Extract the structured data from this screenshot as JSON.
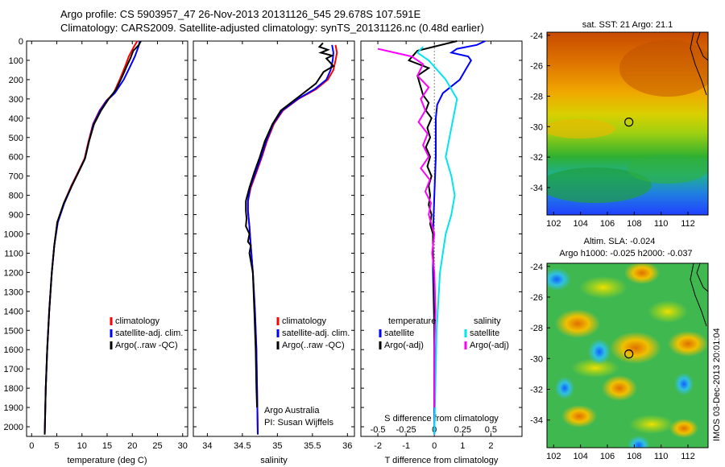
{
  "title_line1": "Argo profile: CS 5903957_47 26-Nov-2013 20131126_545 29.678S 107.591E",
  "title_line2": "Climatology: CARS2009. Satellite-adjusted climatology: synTS_20131126.nc (0.48d earlier)",
  "watermark": "IMOS 03-Dec-2013 20:01:04",
  "colors": {
    "climatology": "#ff0000",
    "satellite": "#0000ff",
    "argo": "#000000",
    "sal_satellite": "#00e5ee",
    "sal_argo": "#ff00ff"
  },
  "depth_axis": {
    "ylim": [
      2050,
      0
    ],
    "ticks": [
      0,
      100,
      200,
      300,
      400,
      500,
      600,
      700,
      800,
      900,
      1000,
      1100,
      1200,
      1300,
      1400,
      1500,
      1600,
      1700,
      1800,
      1900,
      2000
    ]
  },
  "chart_data": [
    {
      "type": "line",
      "xlabel": "temperature (deg C)",
      "ylabel": "",
      "xlim": [
        -1,
        31
      ],
      "xticks": [
        0,
        5,
        10,
        15,
        20,
        25,
        30
      ],
      "legend": [
        "climatology",
        "satellite-adj. clim.",
        "Argo(..raw -QC)"
      ],
      "legend_position": "lower-right",
      "series": [
        {
          "name": "climatology",
          "points": [
            [
              21,
              0
            ],
            [
              20.3,
              30
            ],
            [
              19.3,
              80
            ],
            [
              18.6,
              130
            ],
            [
              17.5,
              200
            ],
            [
              16.3,
              270
            ],
            [
              14.8,
              310
            ],
            [
              13.5,
              360
            ],
            [
              12.2,
              430
            ],
            [
              11.3,
              520
            ],
            [
              10.5,
              610
            ],
            [
              9.2,
              680
            ],
            [
              7.9,
              750
            ],
            [
              6.4,
              840
            ],
            [
              5.1,
              940
            ],
            [
              4.5,
              1060
            ],
            [
              4,
              1200
            ],
            [
              3.5,
              1400
            ],
            [
              3.1,
              1600
            ],
            [
              2.8,
              1800
            ],
            [
              2.6,
              2040
            ]
          ]
        },
        {
          "name": "satellite-adj. clim.",
          "points": [
            [
              21.5,
              0
            ],
            [
              21.2,
              30
            ],
            [
              20.5,
              80
            ],
            [
              19.6,
              130
            ],
            [
              18.3,
              200
            ],
            [
              16.5,
              270
            ],
            [
              14.9,
              310
            ],
            [
              13.6,
              360
            ],
            [
              12.3,
              430
            ],
            [
              11.4,
              520
            ],
            [
              10.6,
              610
            ],
            [
              9.3,
              680
            ],
            [
              8,
              750
            ],
            [
              6.5,
              840
            ],
            [
              5.2,
              940
            ],
            [
              4.5,
              1060
            ],
            [
              4,
              1200
            ],
            [
              3.5,
              1400
            ],
            [
              3.1,
              1600
            ],
            [
              2.8,
              1800
            ],
            [
              2.6,
              2040
            ]
          ]
        },
        {
          "name": "Argo(..raw -QC)",
          "points": [
            [
              21.7,
              0
            ],
            [
              21.3,
              20
            ],
            [
              20.2,
              50
            ],
            [
              19.6,
              90
            ],
            [
              18.9,
              130
            ],
            [
              17.9,
              190
            ],
            [
              16.8,
              250
            ],
            [
              15.3,
              300
            ],
            [
              13.8,
              360
            ],
            [
              12.4,
              430
            ],
            [
              11.4,
              520
            ],
            [
              10.6,
              610
            ],
            [
              9.3,
              680
            ],
            [
              8,
              750
            ],
            [
              6.4,
              840
            ],
            [
              5.1,
              940
            ],
            [
              4.5,
              1060
            ],
            [
              4,
              1200
            ],
            [
              3.5,
              1400
            ],
            [
              3.1,
              1600
            ],
            [
              2.8,
              1800
            ],
            [
              2.6,
              2040
            ]
          ]
        }
      ]
    },
    {
      "type": "line",
      "xlabel": "salinity",
      "ylabel": "",
      "xlim": [
        33.8,
        36.1
      ],
      "xticks": [
        34,
        34.5,
        35,
        35.5,
        36
      ],
      "xtick_labels": [
        "34",
        "34.5",
        "35",
        "35.5",
        "36"
      ],
      "legend": [
        "climatology",
        "satellite-adj. clim.",
        "Argo(..raw -QC)"
      ],
      "legend_position": "lower-right",
      "annotation": [
        "Argo Australia",
        "PI: Susan Wijffels"
      ],
      "series": [
        {
          "name": "climatology",
          "points": [
            [
              35.83,
              20
            ],
            [
              35.85,
              60
            ],
            [
              35.83,
              100
            ],
            [
              35.8,
              150
            ],
            [
              35.72,
              200
            ],
            [
              35.55,
              250
            ],
            [
              35.3,
              300
            ],
            [
              35.08,
              360
            ],
            [
              34.95,
              430
            ],
            [
              34.85,
              520
            ],
            [
              34.78,
              600
            ],
            [
              34.7,
              680
            ],
            [
              34.62,
              760
            ],
            [
              34.58,
              830
            ],
            [
              34.58,
              880
            ],
            [
              34.6,
              960
            ],
            [
              34.62,
              1060
            ],
            [
              34.65,
              1200
            ],
            [
              34.68,
              1400
            ],
            [
              34.7,
              1600
            ],
            [
              34.71,
              1800
            ],
            [
              34.72,
              2040
            ]
          ]
        },
        {
          "name": "satellite-adj. clim.",
          "points": [
            [
              35.78,
              20
            ],
            [
              35.8,
              60
            ],
            [
              35.79,
              100
            ],
            [
              35.76,
              150
            ],
            [
              35.7,
              200
            ],
            [
              35.53,
              250
            ],
            [
              35.29,
              300
            ],
            [
              35.07,
              360
            ],
            [
              34.94,
              430
            ],
            [
              34.84,
              520
            ],
            [
              34.77,
              600
            ],
            [
              34.69,
              680
            ],
            [
              34.61,
              760
            ],
            [
              34.58,
              830
            ],
            [
              34.58,
              880
            ],
            [
              34.6,
              960
            ],
            [
              34.62,
              1060
            ],
            [
              34.65,
              1200
            ],
            [
              34.68,
              1400
            ],
            [
              34.7,
              1600
            ],
            [
              34.71,
              1800
            ],
            [
              34.72,
              2040
            ]
          ]
        },
        {
          "name": "Argo(..raw -QC)",
          "points": [
            [
              35.65,
              10
            ],
            [
              35.6,
              30
            ],
            [
              35.72,
              45
            ],
            [
              35.62,
              60
            ],
            [
              35.78,
              75
            ],
            [
              35.7,
              90
            ],
            [
              35.75,
              110
            ],
            [
              35.8,
              130
            ],
            [
              35.66,
              160
            ],
            [
              35.55,
              220
            ],
            [
              35.3,
              290
            ],
            [
              35.05,
              360
            ],
            [
              34.93,
              430
            ],
            [
              34.82,
              520
            ],
            [
              34.75,
              600
            ],
            [
              34.67,
              680
            ],
            [
              34.6,
              760
            ],
            [
              34.55,
              830
            ],
            [
              34.55,
              880
            ],
            [
              34.56,
              920
            ],
            [
              34.55,
              960
            ],
            [
              34.6,
              1000
            ],
            [
              34.58,
              1040
            ],
            [
              34.62,
              1060
            ],
            [
              34.6,
              1100
            ],
            [
              34.65,
              1200
            ],
            [
              34.67,
              1400
            ],
            [
              34.69,
              1600
            ],
            [
              34.7,
              1800
            ],
            [
              34.71,
              1900
            ]
          ]
        }
      ]
    },
    {
      "type": "line",
      "xlabel": "T difference from climatology",
      "ylabel": "",
      "xlim": [
        -2.6,
        3.1
      ],
      "xticks": [
        -2,
        -1,
        0,
        1,
        2
      ],
      "secondary_xlabel": "S difference from climatology",
      "secondary_xticks": [
        -0.5,
        -0.25,
        0,
        0.25,
        0.5
      ],
      "secondary_xtick_labels": [
        "-0.5",
        "-0.25",
        "0",
        "0.25",
        "0.5"
      ],
      "legend": [
        "temperature",
        "satellite",
        "Argo(-adj)",
        "salinity",
        "satellite",
        "Argo(-adj)"
      ],
      "legend_position": "lower-right",
      "series": [
        {
          "name": "temperature satellite",
          "points": [
            [
              1.8,
              0
            ],
            [
              1.5,
              20
            ],
            [
              0.8,
              40
            ],
            [
              0.6,
              60
            ],
            [
              1.2,
              80
            ],
            [
              1.3,
              100
            ],
            [
              1.1,
              150
            ],
            [
              0.9,
              200
            ],
            [
              0.3,
              270
            ],
            [
              0.1,
              330
            ],
            [
              0.05,
              400
            ],
            [
              0.05,
              600
            ],
            [
              0,
              800
            ],
            [
              -0.05,
              1000
            ],
            [
              -0.05,
              1200
            ],
            [
              0,
              1500
            ],
            [
              0,
              1800
            ],
            [
              0,
              2040
            ]
          ]
        },
        {
          "name": "temperature Argo(-adj)",
          "points": [
            [
              0.8,
              0
            ],
            [
              -0.6,
              50
            ],
            [
              -0.9,
              100
            ],
            [
              -0.2,
              140
            ],
            [
              -0.6,
              180
            ],
            [
              -0.5,
              230
            ],
            [
              -0.4,
              280
            ],
            [
              -0.2,
              320
            ],
            [
              -0.3,
              360
            ],
            [
              -0.1,
              400
            ],
            [
              -0.25,
              450
            ],
            [
              -0.15,
              500
            ],
            [
              -0.3,
              550
            ],
            [
              -0.15,
              600
            ],
            [
              -0.25,
              650
            ],
            [
              -0.1,
              700
            ],
            [
              -0.2,
              750
            ],
            [
              -0.15,
              800
            ],
            [
              -0.2,
              850
            ],
            [
              -0.1,
              900
            ],
            [
              -0.15,
              950
            ],
            [
              -0.05,
              1000
            ],
            [
              -0.05,
              1100
            ],
            [
              0,
              1300
            ],
            [
              0,
              1600
            ],
            [
              0,
              1900
            ]
          ]
        },
        {
          "name": "salinity satellite",
          "points": [
            [
              -0.1,
              30
            ],
            [
              -0.15,
              60
            ],
            [
              -0.05,
              100
            ],
            [
              0.1,
              200
            ],
            [
              0.2,
              300
            ],
            [
              0.15,
              450
            ],
            [
              0.1,
              600
            ],
            [
              0.15,
              700
            ],
            [
              0.18,
              800
            ],
            [
              0.15,
              900
            ],
            [
              0.1,
              1000
            ],
            [
              0.05,
              1200
            ],
            [
              0.02,
              1500
            ],
            [
              0,
              2040
            ]
          ]
        },
        {
          "name": "salinity Argo(-adj)",
          "points": [
            [
              -0.5,
              40
            ],
            [
              -0.2,
              80
            ],
            [
              -0.1,
              120
            ],
            [
              -0.15,
              180
            ],
            [
              -0.05,
              240
            ],
            [
              -0.12,
              300
            ],
            [
              -0.08,
              360
            ],
            [
              -0.14,
              420
            ],
            [
              -0.06,
              480
            ],
            [
              -0.1,
              540
            ],
            [
              -0.05,
              600
            ],
            [
              -0.12,
              660
            ],
            [
              -0.04,
              720
            ],
            [
              -0.08,
              780
            ],
            [
              -0.03,
              840
            ],
            [
              -0.05,
              900
            ],
            [
              0,
              1000
            ],
            [
              -0.02,
              1100
            ],
            [
              0,
              1200
            ],
            [
              0.01,
              1400
            ],
            [
              0,
              1600
            ],
            [
              0,
              1900
            ]
          ]
        }
      ]
    },
    {
      "type": "heatmap",
      "title": "sat. SST: 21 Argo: 21.1",
      "xlim": [
        101.5,
        113.5
      ],
      "ylim": [
        -35.8,
        -23.8
      ],
      "xticks": [
        102,
        104,
        106,
        108,
        110,
        112
      ],
      "yticks": [
        -24,
        -26,
        -28,
        -30,
        -32,
        -34
      ],
      "marker": [
        107.6,
        -29.7
      ]
    },
    {
      "type": "heatmap",
      "title": "Altim. SLA: -0.024",
      "subtitle": "Argo h1000: -0.025 h2000: -0.037",
      "xlim": [
        101.5,
        113.5
      ],
      "ylim": [
        -35.8,
        -23.8
      ],
      "xticks": [
        102,
        104,
        106,
        108,
        110,
        112
      ],
      "yticks": [
        -24,
        -26,
        -28,
        -30,
        -32,
        -34
      ],
      "marker": [
        107.6,
        -29.7
      ]
    }
  ]
}
